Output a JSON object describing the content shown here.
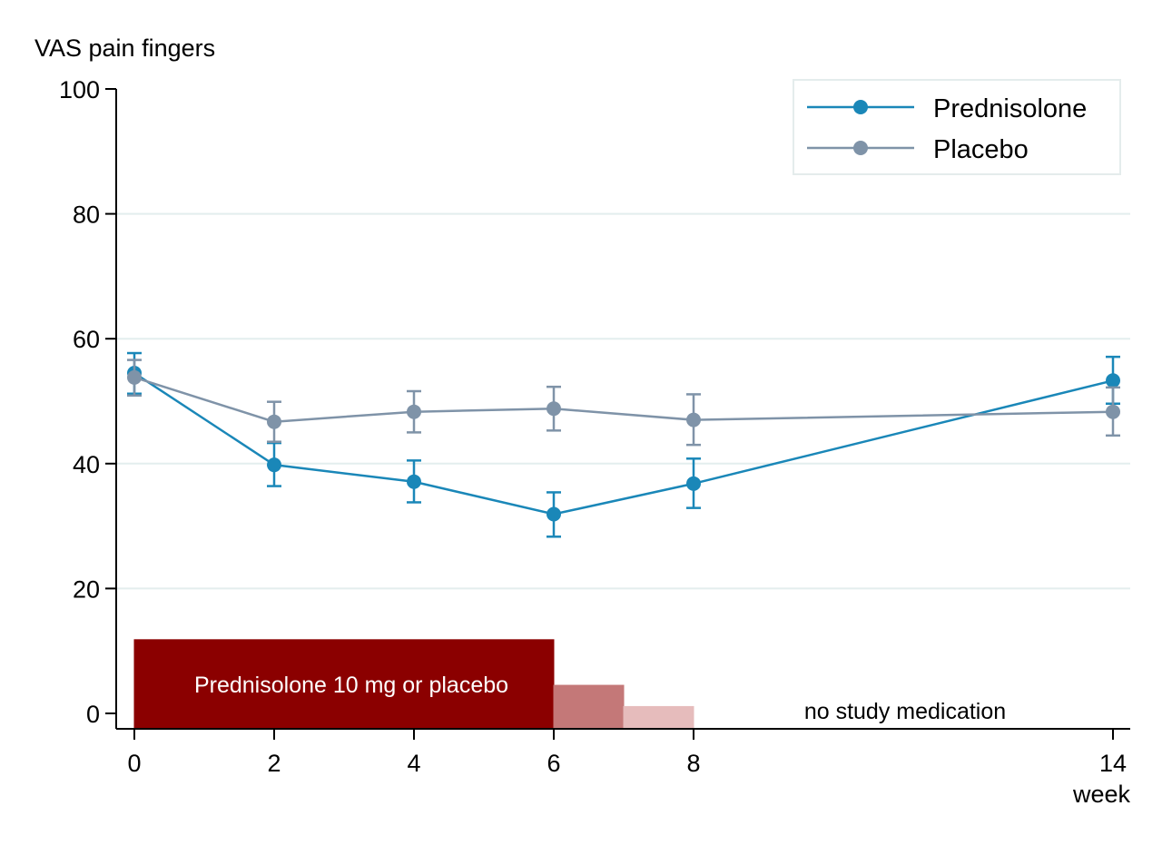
{
  "chart_data": {
    "type": "line",
    "ylabel": "VAS pain fingers",
    "xlabel": "week",
    "ylim": [
      0,
      100
    ],
    "yticks": [
      0,
      20,
      40,
      60,
      80,
      100
    ],
    "xticks": [
      0,
      2,
      4,
      6,
      8,
      14
    ],
    "grid": "horizontal",
    "legend_position": "top-right",
    "series": [
      {
        "name": "Prednisolone",
        "color": "#1a87b8",
        "points": [
          {
            "x": 0,
            "y": 54.5,
            "low": 51.2,
            "high": 57.7
          },
          {
            "x": 2,
            "y": 39.8,
            "low": 36.4,
            "high": 43.3
          },
          {
            "x": 4,
            "y": 37.1,
            "low": 33.8,
            "high": 40.5
          },
          {
            "x": 6,
            "y": 31.9,
            "low": 28.3,
            "high": 35.4
          },
          {
            "x": 8,
            "y": 36.8,
            "low": 32.9,
            "high": 40.8
          },
          {
            "x": 14,
            "y": 53.3,
            "low": 49.6,
            "high": 57.1
          }
        ]
      },
      {
        "name": "Placebo",
        "color": "#7f93a8",
        "points": [
          {
            "x": 0,
            "y": 53.8,
            "low": 50.9,
            "high": 56.6
          },
          {
            "x": 2,
            "y": 46.7,
            "low": 43.5,
            "high": 49.9
          },
          {
            "x": 4,
            "y": 48.3,
            "low": 45.0,
            "high": 51.6
          },
          {
            "x": 6,
            "y": 48.8,
            "low": 45.3,
            "high": 52.3
          },
          {
            "x": 8,
            "y": 47.0,
            "low": 43.0,
            "high": 51.1
          },
          {
            "x": 14,
            "y": 48.3,
            "low": 44.5,
            "high": 52.2
          }
        ]
      }
    ],
    "annotations": {
      "treatment_bars": [
        {
          "x0": 0,
          "x1": 6,
          "height": 11.8,
          "color": "#8b0000",
          "label": "Prednisolone 10 mg or placebo"
        },
        {
          "x0": 6,
          "x1": 7,
          "height": 4.5,
          "color": "#c47878"
        },
        {
          "x0": 7,
          "x1": 8,
          "height": 1.1,
          "color": "#e6bcbc"
        }
      ],
      "no_medication_label": "no study medication"
    }
  }
}
